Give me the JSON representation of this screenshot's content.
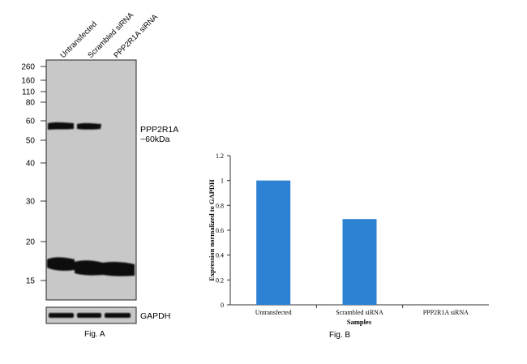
{
  "figure_a": {
    "lane_labels": [
      "Untransfected",
      "Scrambled siRNA",
      "PPP2R1A siRNA"
    ],
    "mw_markers": [
      "260",
      "160",
      "110",
      "80",
      "60",
      "50",
      "40",
      "30",
      "20",
      "15"
    ],
    "target_label": "PPP2R1A",
    "target_size": "~60kDa",
    "loading_control_label": "GAPDH",
    "caption": "Fig. A"
  },
  "chart_data": {
    "type": "bar",
    "categories": [
      "Untransfected",
      "Scrambled siRNA",
      "PPP2R1A siRNA"
    ],
    "values": [
      1.0,
      0.69,
      0.0
    ],
    "xlabel": "Samples",
    "ylabel": "Expression normalized to GAPDH",
    "ylim": [
      0,
      1.2
    ],
    "yticks": [
      "0",
      "0.2",
      "0.4",
      "0.6",
      "0.8",
      "1",
      "1.2"
    ],
    "bar_color": "#2d82d4",
    "grid": false
  },
  "figure_b": {
    "caption": "Fig. B"
  }
}
